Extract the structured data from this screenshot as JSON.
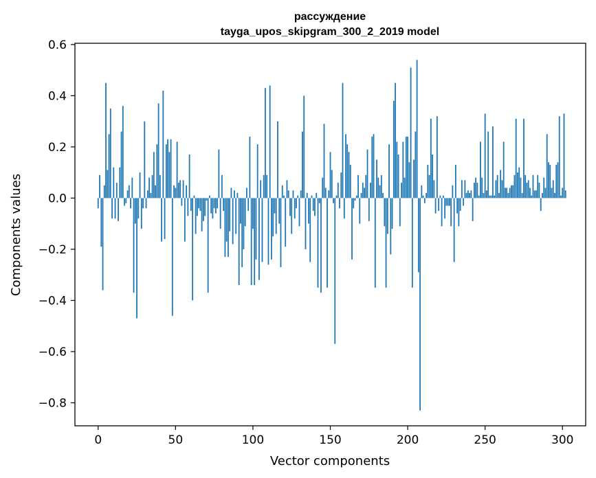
{
  "chart_data": {
    "type": "bar",
    "title": "рассуждение",
    "subtitle": "tayga_upos_skipgram_300_2_2019 model",
    "xlabel": "Vector components",
    "ylabel": "Components values",
    "xlim": [
      -15,
      315
    ],
    "ylim": [
      -0.89,
      0.605
    ],
    "xticks": [
      0,
      50,
      100,
      150,
      200,
      250,
      300
    ],
    "xtick_labels": [
      "0",
      "50",
      "100",
      "150",
      "200",
      "250",
      "300"
    ],
    "yticks": [
      0.6,
      0.4,
      0.2,
      0.0,
      -0.2,
      -0.4,
      -0.6,
      -0.8
    ],
    "ytick_labels": [
      "0.6",
      "0.4",
      "0.2",
      "0.0",
      "−0.2",
      "−0.4",
      "−0.6",
      "−0.8"
    ],
    "bar_color": "#1f77b4",
    "series": [
      {
        "name": "рассуждение",
        "values": [
          -0.04,
          0.09,
          -0.19,
          -0.36,
          0.05,
          0.45,
          0.11,
          0.25,
          0.35,
          -0.08,
          0.12,
          -0.08,
          0.06,
          -0.09,
          0.12,
          0.26,
          0.36,
          -0.03,
          -0.02,
          0.03,
          0.05,
          -0.04,
          0.08,
          -0.37,
          -0.1,
          -0.47,
          -0.08,
          0.1,
          -0.12,
          -0.04,
          0.3,
          -0.04,
          0.03,
          0.08,
          0.02,
          0.09,
          0.18,
          0.05,
          0.21,
          0.37,
          0.09,
          -0.17,
          0.42,
          -0.16,
          0.21,
          0.23,
          0.18,
          0.23,
          -0.46,
          0.05,
          0.04,
          0.22,
          0.06,
          0.07,
          -0.03,
          0.07,
          -0.17,
          0.05,
          -0.07,
          0.17,
          -0.05,
          -0.4,
          0.01,
          -0.14,
          -0.07,
          -0.04,
          -0.05,
          -0.13,
          -0.09,
          -0.07,
          -0.01,
          -0.37,
          0.01,
          -0.06,
          -0.08,
          -0.04,
          -0.06,
          -0.04,
          0.19,
          -0.12,
          0.09,
          -0.05,
          -0.23,
          -0.17,
          -0.23,
          -0.13,
          0.04,
          -0.18,
          0.03,
          -0.14,
          0.02,
          -0.34,
          -0.1,
          -0.27,
          -0.2,
          -0.11,
          0.04,
          -0.05,
          0.24,
          -0.34,
          -0.12,
          -0.34,
          -0.24,
          0.21,
          -0.32,
          0.07,
          -0.25,
          0.09,
          0.43,
          0.09,
          -0.26,
          0.44,
          -0.24,
          -0.15,
          -0.06,
          -0.14,
          0.3,
          -0.1,
          -0.27,
          0.05,
          0.01,
          -0.19,
          0.07,
          0.03,
          -0.07,
          -0.14,
          0.03,
          -0.08,
          -0.04,
          0.01,
          -0.11,
          0.03,
          0.26,
          0.4,
          -0.2,
          0.02,
          -0.1,
          -0.25,
          0.01,
          -0.05,
          -0.07,
          0.02,
          -0.35,
          -0.02,
          -0.37,
          0.08,
          0.29,
          0.04,
          -0.35,
          0.03,
          0.18,
          0.11,
          -0.02,
          -0.57,
          0.01,
          0.06,
          -0.04,
          0.1,
          0.45,
          -0.08,
          0.25,
          0.21,
          0.18,
          0.13,
          -0.24,
          -0.04,
          -0.01,
          0.01,
          0.09,
          -0.1,
          0.02,
          0.06,
          0.04,
          0.09,
          0.19,
          -0.09,
          0.06,
          0.24,
          0.25,
          -0.35,
          0.15,
          0.08,
          0.05,
          0.09,
          0.02,
          -0.11,
          -0.35,
          -0.14,
          0.21,
          -0.22,
          -0.12,
          0.38,
          0.45,
          0.22,
          0.17,
          -0.11,
          0.06,
          0.22,
          0.08,
          0.24,
          0.24,
          0.14,
          0.51,
          -0.35,
          0.15,
          0.26,
          0.54,
          -0.29,
          -0.83,
          0.05,
          0.01,
          -0.02,
          0.02,
          0.13,
          0.09,
          0.31,
          0.17,
          0.07,
          -0.06,
          0.32,
          -0.05,
          0.01,
          -0.11,
          0.01,
          -0.08,
          -0.03,
          -0.03,
          -0.03,
          -0.11,
          0.05,
          -0.25,
          0.13,
          -0.06,
          -0.11,
          -0.05,
          0.07,
          -0.03,
          0.07,
          0.02,
          0.03,
          0.02,
          0.03,
          -0.09,
          0.06,
          0.08,
          0.06,
          0.01,
          0.22,
          0.08,
          0.02,
          0.33,
          0.03,
          0.26,
          0.01,
          0.01,
          0.28,
          0.01,
          0.07,
          0.09,
          0.02,
          0.11,
          0.07,
          0.22,
          0.04,
          0.04,
          0.02,
          0.04,
          0.05,
          0.05,
          0.09,
          0.31,
          0.1,
          0.12,
          0.08,
          0.02,
          0.31,
          0.09,
          0.06,
          0.07,
          0.04,
          0.01,
          0.09,
          0.03,
          0.03,
          0.09,
          0.06,
          -0.05,
          0.02,
          0.08,
          0.04,
          0.25,
          0.14,
          0.13,
          0.04,
          0.07,
          0.02,
          0.13,
          0.14,
          0.32,
          0.01,
          0.04,
          0.33,
          0.03
        ]
      }
    ]
  }
}
